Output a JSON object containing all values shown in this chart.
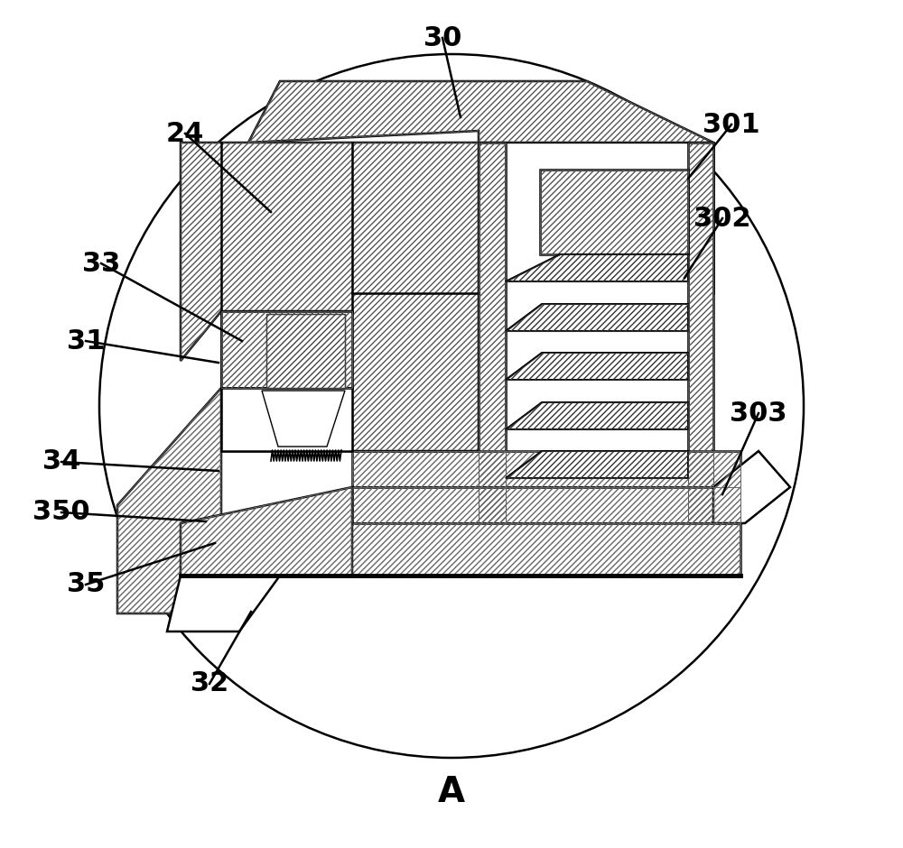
{
  "bg_color": "#ffffff",
  "line_color": "#000000",
  "label_fontsize": 22,
  "A_fontsize": 28,
  "labels_info": [
    [
      "30",
      490,
      42,
      510,
      130
    ],
    [
      "24",
      205,
      148,
      300,
      235
    ],
    [
      "301",
      810,
      138,
      762,
      198
    ],
    [
      "302",
      800,
      242,
      758,
      308
    ],
    [
      "303",
      840,
      458,
      800,
      548
    ],
    [
      "33",
      112,
      292,
      268,
      378
    ],
    [
      "31",
      95,
      378,
      242,
      402
    ],
    [
      "34",
      68,
      512,
      242,
      522
    ],
    [
      "350",
      68,
      568,
      228,
      578
    ],
    [
      "35",
      95,
      648,
      238,
      602
    ],
    [
      "32",
      232,
      758,
      278,
      678
    ]
  ]
}
